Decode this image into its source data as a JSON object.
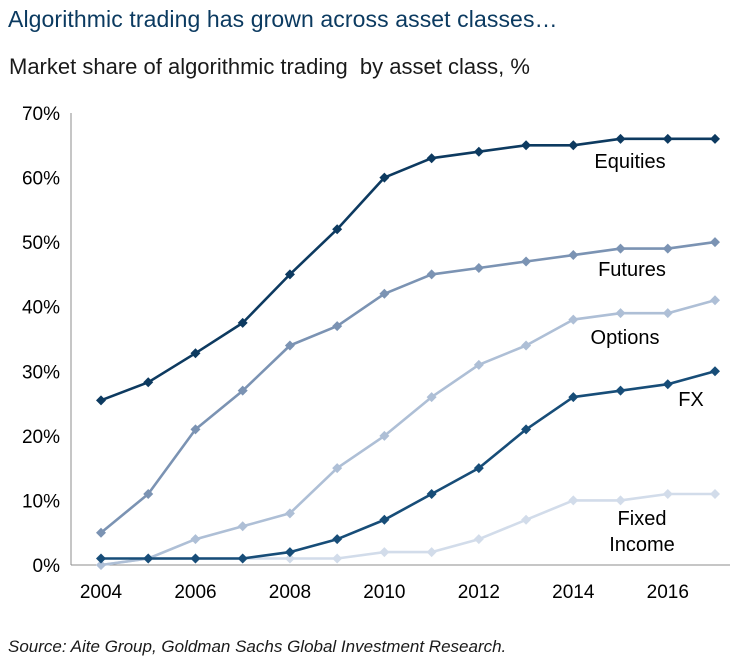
{
  "title": "Algorithmic trading has grown across asset classes…",
  "subtitle": "Market share of algorithmic trading  by asset class, %",
  "source": "Source: Aite Group, Goldman Sachs Global Investment Research.",
  "chart_data": {
    "type": "line",
    "x": [
      2004,
      2005,
      2006,
      2007,
      2008,
      2009,
      2010,
      2011,
      2012,
      2013,
      2014,
      2015,
      2016,
      2017
    ],
    "xticks": [
      "2004",
      "2006",
      "2008",
      "2010",
      "2012",
      "2014",
      "2016"
    ],
    "xtick_values": [
      2004,
      2006,
      2008,
      2010,
      2012,
      2014,
      2016
    ],
    "xlim": [
      2004,
      2017
    ],
    "ylim": [
      0,
      70
    ],
    "yticks": [
      "0%",
      "10%",
      "20%",
      "30%",
      "40%",
      "50%",
      "60%",
      "70%"
    ],
    "ytick_values": [
      0,
      10,
      20,
      30,
      40,
      50,
      60,
      70
    ],
    "grid": false,
    "marker": "diamond",
    "series": [
      {
        "name": "Equities",
        "color": "#0d3a60",
        "values": [
          25.5,
          28.3,
          32.8,
          37.5,
          45,
          52,
          60,
          63,
          64,
          65,
          65,
          66,
          66,
          66
        ]
      },
      {
        "name": "Futures",
        "color": "#7b93b3",
        "values": [
          5,
          11,
          21,
          27,
          34,
          37,
          42,
          45,
          46,
          47,
          48,
          49,
          49,
          50
        ]
      },
      {
        "name": "Options",
        "color": "#aebfd6",
        "values": [
          0,
          1,
          4,
          6,
          8,
          15,
          20,
          26,
          31,
          34,
          38,
          39,
          39,
          41
        ]
      },
      {
        "name": "FX",
        "color": "#174d78",
        "values": [
          1,
          1,
          1,
          1,
          2,
          4,
          7,
          11,
          15,
          21,
          26,
          27,
          28,
          30
        ]
      },
      {
        "name": "Fixed Income",
        "color": "#d2dcea",
        "values": [
          0,
          1,
          1,
          1,
          1,
          1,
          2,
          2,
          4,
          7,
          10,
          10,
          11,
          11
        ]
      }
    ],
    "series_labels": [
      {
        "series": "Equities",
        "lines": [
          "Equities"
        ]
      },
      {
        "series": "Futures",
        "lines": [
          "Futures"
        ]
      },
      {
        "series": "Options",
        "lines": [
          "Options"
        ]
      },
      {
        "series": "FX",
        "lines": [
          "FX"
        ]
      },
      {
        "series": "Fixed Income",
        "lines": [
          "Fixed",
          "Income"
        ]
      }
    ]
  }
}
